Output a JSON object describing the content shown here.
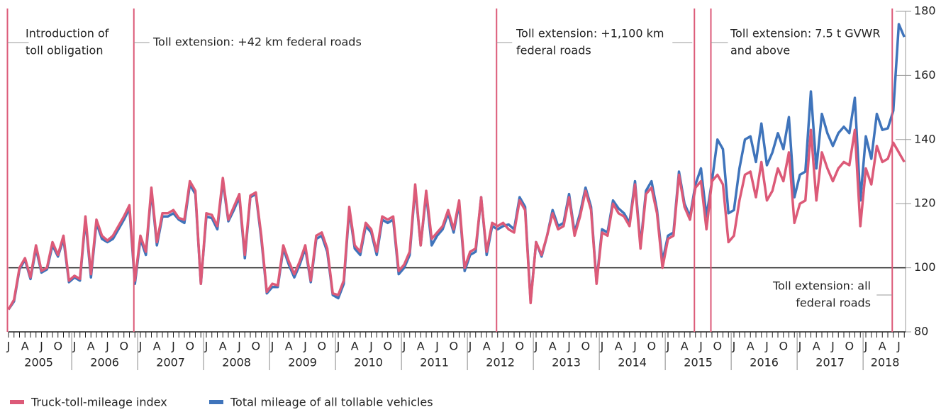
{
  "chart_data": {
    "type": "line",
    "categories": [
      "J",
      null,
      null,
      "A",
      null,
      null,
      "J",
      null,
      null,
      "O",
      null,
      null,
      "J",
      null,
      null,
      "A",
      null,
      null,
      "J",
      null,
      null,
      "O",
      null,
      null,
      "J",
      null,
      null,
      "A",
      null,
      null,
      "J",
      null,
      null,
      "O",
      null,
      null,
      "J",
      null,
      null,
      "A",
      null,
      null,
      "J",
      null,
      null,
      "O",
      null,
      null,
      "J",
      null,
      null,
      "A",
      null,
      null,
      "J",
      null,
      null,
      "O",
      null,
      null,
      "J",
      null,
      null,
      "A",
      null,
      null,
      "J",
      null,
      null,
      "O",
      null,
      null,
      "J",
      null,
      null,
      "A",
      null,
      null,
      "J",
      null,
      null,
      "O",
      null,
      null,
      "J",
      null,
      null,
      "A",
      null,
      null,
      "J",
      null,
      null,
      "O",
      null,
      null,
      "J",
      null,
      null,
      "A",
      null,
      null,
      "J",
      null,
      null,
      "O",
      null,
      null,
      "J",
      null,
      null,
      "A",
      null,
      null,
      "J",
      null,
      null,
      "O",
      null,
      null,
      "J",
      null,
      null,
      "A",
      null,
      null,
      "J",
      null,
      null,
      "O",
      null,
      null,
      "J",
      null,
      null,
      "A",
      null,
      null,
      "J",
      null,
      null,
      "O",
      null,
      null,
      "J",
      null,
      null,
      "A",
      null,
      null,
      "J",
      null,
      null,
      "O",
      null,
      null,
      "J",
      null,
      null,
      "A",
      null,
      null,
      "J",
      null
    ],
    "year_labels": [
      "2005",
      "2006",
      "2007",
      "2008",
      "2009",
      "2010",
      "2011",
      "2012",
      "2013",
      "2014",
      "2015",
      "2016",
      "2017",
      "2018"
    ],
    "series": [
      {
        "name": "Total mileage of all tollable vehicles",
        "color": "#3f74bb",
        "values": [
          87,
          89.5,
          99.5,
          102.5,
          96.5,
          106,
          98.5,
          99.5,
          107,
          103.5,
          109,
          95.5,
          97,
          96,
          115,
          97,
          114,
          109,
          108,
          109,
          112,
          115,
          118.5,
          95,
          109,
          104,
          124,
          107,
          116,
          116,
          117,
          115,
          114,
          126,
          123,
          95,
          116,
          115.5,
          112,
          127,
          114.5,
          118,
          122,
          103,
          122,
          123,
          109,
          92,
          94,
          94,
          106,
          101,
          97,
          101,
          106,
          95.5,
          109,
          110,
          105,
          91.5,
          90.5,
          95,
          118,
          106,
          104,
          113,
          111,
          104,
          115,
          114,
          115,
          98,
          100,
          104,
          125,
          107,
          123,
          107,
          110,
          112,
          117,
          111,
          120,
          99,
          104,
          105,
          122,
          104,
          113,
          112,
          113,
          113.5,
          112,
          122,
          119,
          89.5,
          108,
          103.5,
          110,
          118,
          113,
          114,
          123,
          111,
          117,
          125,
          119,
          95.5,
          112,
          111,
          121,
          118.5,
          117,
          114,
          127,
          107,
          124,
          127,
          118,
          102,
          110,
          111,
          130,
          120,
          116,
          126,
          131,
          116,
          127,
          140,
          137,
          117,
          118,
          131,
          140,
          141,
          133,
          145,
          132,
          136,
          142,
          137,
          147,
          122,
          129,
          130,
          155,
          131,
          148,
          142,
          138,
          142,
          144,
          142,
          153,
          121,
          141,
          134,
          148,
          143,
          143.5,
          149,
          176,
          172
        ]
      },
      {
        "name": "Truck-toll-mileage index",
        "color": "#dc5a78",
        "values": [
          87,
          90,
          100,
          103,
          97,
          107,
          99,
          100,
          108,
          104,
          110,
          96,
          97.5,
          96.5,
          116,
          98,
          115,
          110,
          108.5,
          110,
          113,
          116,
          119.5,
          96,
          110,
          105,
          125,
          108,
          117,
          117,
          118,
          115.5,
          115,
          127,
          124,
          95,
          117,
          116.5,
          113,
          128,
          115,
          119,
          123,
          104,
          122.5,
          123.5,
          110,
          92.5,
          95,
          94.5,
          107,
          102,
          98,
          102,
          107,
          96,
          110,
          111,
          106,
          92,
          91.5,
          96,
          119,
          107,
          105,
          114,
          112,
          105,
          116,
          115,
          116,
          99,
          101,
          105,
          126,
          107,
          124,
          109,
          111,
          113,
          118,
          112,
          121,
          100,
          105,
          106,
          122,
          105,
          114,
          113,
          114,
          112,
          111,
          121,
          118,
          89,
          108,
          104,
          110,
          117,
          112,
          113,
          122,
          110,
          116,
          124,
          118,
          95,
          111,
          110,
          120,
          117,
          116,
          113,
          126,
          106,
          123,
          125,
          117,
          100,
          109,
          110,
          129,
          119,
          115,
          125,
          127,
          112,
          127,
          129,
          126,
          108,
          110,
          121,
          129,
          130,
          122,
          133,
          121,
          124,
          131,
          127,
          136,
          114,
          120,
          121,
          143,
          121,
          136,
          131,
          127,
          131,
          133,
          132,
          143,
          113,
          131,
          126,
          138,
          133,
          134,
          139,
          136,
          133
        ]
      }
    ],
    "ylim": [
      80,
      180
    ],
    "yticks": [
      80,
      100,
      120,
      140,
      160,
      180
    ],
    "baseline": 100,
    "events": [
      {
        "index": 0,
        "lines": [
          "Introduction of",
          "toll obligation"
        ]
      },
      {
        "index": 23,
        "lines": [
          "Toll extension: +42 km federal roads"
        ]
      },
      {
        "index": 89,
        "lines": [
          "Toll extension: +1,100 km",
          "federal roads"
        ]
      },
      {
        "index": 125,
        "lines": []
      },
      {
        "index": 128,
        "lines": [
          "Toll extension: 7.5 t GVWR",
          "and above"
        ]
      },
      {
        "index": 161,
        "lines": [
          "Toll extension: all",
          "federal roads"
        ]
      }
    ],
    "event_color": "#dc5a78"
  }
}
